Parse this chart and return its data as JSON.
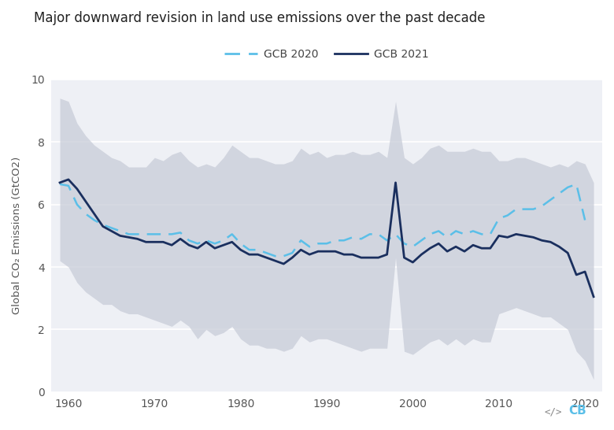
{
  "title": "Major downward revision in land use emissions over the past decade",
  "ylabel": "Global CO₂ Emissions (GtCO2)",
  "legend": [
    "GCB 2020",
    "GCB 2021"
  ],
  "background_color": "#ffffff",
  "plot_bg_color": "#eef0f5",
  "shade_color": "#c8ccd8",
  "line2020_color": "#5bbfe8",
  "line2021_color": "#1a2f5e",
  "years_2020": [
    1959,
    1960,
    1961,
    1962,
    1963,
    1964,
    1965,
    1966,
    1967,
    1968,
    1969,
    1970,
    1971,
    1972,
    1973,
    1974,
    1975,
    1976,
    1977,
    1978,
    1979,
    1980,
    1981,
    1982,
    1983,
    1984,
    1985,
    1986,
    1987,
    1988,
    1989,
    1990,
    1991,
    1992,
    1993,
    1994,
    1995,
    1996,
    1997,
    1998,
    1999,
    2000,
    2001,
    2002,
    2003,
    2004,
    2005,
    2006,
    2007,
    2008,
    2009,
    2010,
    2011,
    2012,
    2013,
    2014,
    2015,
    2016,
    2017,
    2018,
    2019,
    2020
  ],
  "gcb2020": [
    6.65,
    6.6,
    6.0,
    5.7,
    5.5,
    5.35,
    5.25,
    5.15,
    5.05,
    5.05,
    5.05,
    5.05,
    5.05,
    5.05,
    5.1,
    4.85,
    4.75,
    4.85,
    4.75,
    4.85,
    5.05,
    4.75,
    4.55,
    4.55,
    4.45,
    4.35,
    4.35,
    4.45,
    4.85,
    4.65,
    4.75,
    4.75,
    4.85,
    4.85,
    4.95,
    4.9,
    5.05,
    5.05,
    4.85,
    5.05,
    4.75,
    4.65,
    4.85,
    5.05,
    5.15,
    4.95,
    5.15,
    5.05,
    5.15,
    5.05,
    5.05,
    5.55,
    5.65,
    5.85,
    5.85,
    5.85,
    5.95,
    6.15,
    6.35,
    6.55,
    6.65,
    5.5
  ],
  "years_2021": [
    1959,
    1960,
    1961,
    1962,
    1963,
    1964,
    1965,
    1966,
    1967,
    1968,
    1969,
    1970,
    1971,
    1972,
    1973,
    1974,
    1975,
    1976,
    1977,
    1978,
    1979,
    1980,
    1981,
    1982,
    1983,
    1984,
    1985,
    1986,
    1987,
    1988,
    1989,
    1990,
    1991,
    1992,
    1993,
    1994,
    1995,
    1996,
    1997,
    1998,
    1999,
    2000,
    2001,
    2002,
    2003,
    2004,
    2005,
    2006,
    2007,
    2008,
    2009,
    2010,
    2011,
    2012,
    2013,
    2014,
    2015,
    2016,
    2017,
    2018,
    2019,
    2020,
    2021
  ],
  "gcb2021": [
    6.7,
    6.8,
    6.5,
    6.1,
    5.7,
    5.3,
    5.15,
    5.0,
    4.95,
    4.9,
    4.8,
    4.8,
    4.8,
    4.7,
    4.9,
    4.7,
    4.6,
    4.8,
    4.6,
    4.7,
    4.8,
    4.55,
    4.4,
    4.4,
    4.3,
    4.2,
    4.1,
    4.3,
    4.55,
    4.4,
    4.5,
    4.5,
    4.5,
    4.4,
    4.4,
    4.3,
    4.3,
    4.3,
    4.4,
    6.7,
    4.3,
    4.15,
    4.4,
    4.6,
    4.75,
    4.5,
    4.65,
    4.5,
    4.7,
    4.6,
    4.6,
    5.0,
    4.95,
    5.05,
    5.0,
    4.95,
    4.85,
    4.8,
    4.65,
    4.45,
    3.75,
    3.85,
    3.05
  ],
  "shade_upper": [
    9.4,
    9.3,
    8.6,
    8.2,
    7.9,
    7.7,
    7.5,
    7.4,
    7.2,
    7.2,
    7.2,
    7.5,
    7.4,
    7.6,
    7.7,
    7.4,
    7.2,
    7.3,
    7.2,
    7.5,
    7.9,
    7.7,
    7.5,
    7.5,
    7.4,
    7.3,
    7.3,
    7.4,
    7.8,
    7.6,
    7.7,
    7.5,
    7.6,
    7.6,
    7.7,
    7.6,
    7.6,
    7.7,
    7.5,
    9.3,
    7.5,
    7.3,
    7.5,
    7.8,
    7.9,
    7.7,
    7.7,
    7.7,
    7.8,
    7.7,
    7.7,
    7.4,
    7.4,
    7.5,
    7.5,
    7.4,
    7.3,
    7.2,
    7.3,
    7.2,
    7.4,
    7.3,
    6.7
  ],
  "shade_lower": [
    4.2,
    4.0,
    3.5,
    3.2,
    3.0,
    2.8,
    2.8,
    2.6,
    2.5,
    2.5,
    2.4,
    2.3,
    2.2,
    2.1,
    2.3,
    2.1,
    1.7,
    2.0,
    1.8,
    1.9,
    2.1,
    1.7,
    1.5,
    1.5,
    1.4,
    1.4,
    1.3,
    1.4,
    1.8,
    1.6,
    1.7,
    1.7,
    1.6,
    1.5,
    1.4,
    1.3,
    1.4,
    1.4,
    1.4,
    4.3,
    1.3,
    1.2,
    1.4,
    1.6,
    1.7,
    1.5,
    1.7,
    1.5,
    1.7,
    1.6,
    1.6,
    2.5,
    2.6,
    2.7,
    2.6,
    2.5,
    2.4,
    2.4,
    2.2,
    2.0,
    1.3,
    1.0,
    0.4
  ],
  "xlim": [
    1958,
    2022
  ],
  "ylim": [
    0,
    10
  ],
  "yticks": [
    0,
    2,
    4,
    6,
    8,
    10
  ],
  "xticks": [
    1960,
    1970,
    1980,
    1990,
    2000,
    2010,
    2020
  ]
}
